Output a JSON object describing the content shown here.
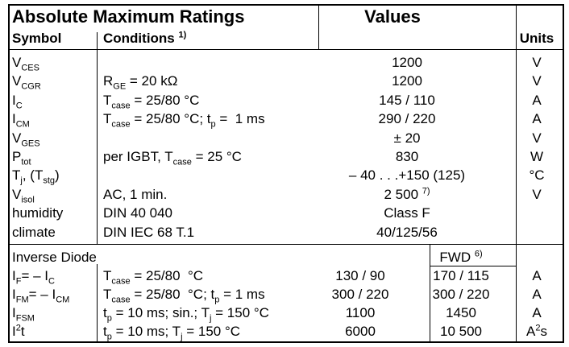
{
  "header": {
    "title": "Absolute Maximum Ratings",
    "symbol": "Symbol",
    "conditions": [
      {
        "text": "Conditions "
      },
      {
        "sup": "1)"
      }
    ],
    "values": "Values",
    "units": "Units"
  },
  "rows": [
    {
      "symbol": [
        {
          "text": "V"
        },
        {
          "sub": "CES"
        }
      ],
      "conditions": [],
      "value": [
        {
          "text": "1200"
        }
      ],
      "unit": [
        {
          "text": "V"
        }
      ]
    },
    {
      "symbol": [
        {
          "text": "V"
        },
        {
          "sub": "CGR"
        }
      ],
      "conditions": [
        {
          "text": "R"
        },
        {
          "sub": "GE"
        },
        {
          "text": " = 20 kΩ"
        }
      ],
      "value": [
        {
          "text": "1200"
        }
      ],
      "unit": [
        {
          "text": "V"
        }
      ]
    },
    {
      "symbol": [
        {
          "text": "I"
        },
        {
          "sub": "C"
        }
      ],
      "conditions": [
        {
          "text": "T"
        },
        {
          "sub": "case"
        },
        {
          "text": " = 25/80 °C"
        }
      ],
      "value": [
        {
          "text": "145 / 110"
        }
      ],
      "unit": [
        {
          "text": "A"
        }
      ]
    },
    {
      "symbol": [
        {
          "text": "I"
        },
        {
          "sub": "CM"
        }
      ],
      "conditions": [
        {
          "text": "T"
        },
        {
          "sub": "case"
        },
        {
          "text": " = 25/80 °C; t"
        },
        {
          "sub": "p"
        },
        {
          "text": " =  1 ms"
        }
      ],
      "value": [
        {
          "text": "290 / 220"
        }
      ],
      "unit": [
        {
          "text": "A"
        }
      ]
    },
    {
      "symbol": [
        {
          "text": "V"
        },
        {
          "sub": "GES"
        }
      ],
      "conditions": [],
      "value": [
        {
          "text": "± 20"
        }
      ],
      "unit": [
        {
          "text": "V"
        }
      ]
    },
    {
      "symbol": [
        {
          "text": "P"
        },
        {
          "sub": "tot"
        }
      ],
      "conditions": [
        {
          "text": "per IGBT, T"
        },
        {
          "sub": "case"
        },
        {
          "text": " = 25 °C"
        }
      ],
      "value": [
        {
          "text": "830"
        }
      ],
      "unit": [
        {
          "text": "W"
        }
      ]
    },
    {
      "symbol": [
        {
          "text": "T"
        },
        {
          "sub": "j"
        },
        {
          "text": ", (T"
        },
        {
          "sub": "stg"
        },
        {
          "text": ")"
        }
      ],
      "conditions": [],
      "value": [
        {
          "text": "– 40 . . .+150 (125)"
        }
      ],
      "unit": [
        {
          "text": "°C"
        }
      ]
    },
    {
      "symbol": [
        {
          "text": "V"
        },
        {
          "sub": "isol"
        }
      ],
      "conditions": [
        {
          "text": "AC, 1 min."
        }
      ],
      "value": [
        {
          "text": "2 500 "
        },
        {
          "sup": "7)"
        }
      ],
      "unit": [
        {
          "text": "V"
        }
      ]
    },
    {
      "symbol": [
        {
          "text": "humidity"
        }
      ],
      "conditions": [
        {
          "text": "DIN 40 040"
        }
      ],
      "value": [
        {
          "text": "Class F"
        }
      ],
      "unit": []
    },
    {
      "symbol": [
        {
          "text": "climate"
        }
      ],
      "conditions": [
        {
          "text": "DIN IEC 68 T.1"
        }
      ],
      "value": [
        {
          "text": "40/125/56"
        }
      ],
      "unit": []
    }
  ],
  "diode": {
    "title": "Inverse Diode",
    "fwd": [
      {
        "text": "FWD "
      },
      {
        "sup": "6)"
      }
    ],
    "rows": [
      {
        "symbol": [
          {
            "text": "I"
          },
          {
            "sub": "F"
          },
          {
            "text": "= – I"
          },
          {
            "sub": "C"
          }
        ],
        "conditions": [
          {
            "text": "T"
          },
          {
            "sub": "case"
          },
          {
            "text": " = 25/80  °C"
          }
        ],
        "value": [
          {
            "text": "130 / 90"
          }
        ],
        "fwd": [
          {
            "text": "170 / 115"
          }
        ],
        "unit": [
          {
            "text": "A"
          }
        ]
      },
      {
        "symbol": [
          {
            "text": "I"
          },
          {
            "sub": "FM"
          },
          {
            "text": "= – I"
          },
          {
            "sub": "CM"
          }
        ],
        "conditions": [
          {
            "text": "T"
          },
          {
            "sub": "case"
          },
          {
            "text": " = 25/80  °C; t"
          },
          {
            "sub": "p"
          },
          {
            "text": " = 1 ms"
          }
        ],
        "value": [
          {
            "text": "300 / 220"
          }
        ],
        "fwd": [
          {
            "text": "300 / 220"
          }
        ],
        "unit": [
          {
            "text": "A"
          }
        ]
      },
      {
        "symbol": [
          {
            "text": "I"
          },
          {
            "sub": "FSM"
          }
        ],
        "conditions": [
          {
            "text": "t"
          },
          {
            "sub": "p"
          },
          {
            "text": " = 10 ms; sin.; T"
          },
          {
            "sub": "j"
          },
          {
            "text": " = 150 °C"
          }
        ],
        "value": [
          {
            "text": "1100"
          }
        ],
        "fwd": [
          {
            "text": "1450"
          }
        ],
        "unit": [
          {
            "text": "A"
          }
        ]
      },
      {
        "symbol": [
          {
            "text": "I"
          },
          {
            "sup": "2"
          },
          {
            "text": "t"
          }
        ],
        "conditions": [
          {
            "text": "t"
          },
          {
            "sub": "p"
          },
          {
            "text": " = 10 ms; T"
          },
          {
            "sub": "j"
          },
          {
            "text": " = 150 °C"
          }
        ],
        "value": [
          {
            "text": "6000"
          }
        ],
        "fwd": [
          {
            "text": "10 500"
          }
        ],
        "unit": [
          {
            "text": "A"
          },
          {
            "sup": "2"
          },
          {
            "text": "s"
          }
        ]
      }
    ]
  }
}
